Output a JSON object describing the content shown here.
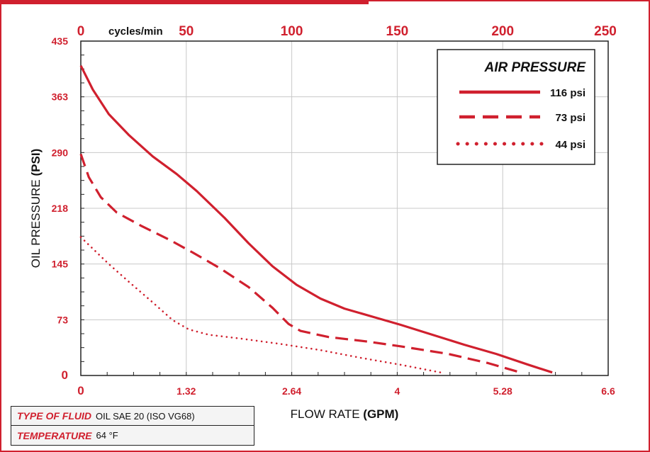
{
  "colors": {
    "accent": "#d0202e",
    "text": "#111111",
    "grid": "#c8c8c8",
    "frame": "#222222"
  },
  "chart_data": {
    "type": "line",
    "xlabel_bold_prefix": "FLOW RATE",
    "xlabel_unit": "(GPM)",
    "ylabel_prefix": "OIL PRESSURE",
    "ylabel_unit": "(PSI)",
    "xlim": [
      0,
      6.6
    ],
    "ylim": [
      0,
      435
    ],
    "x_ticks": [
      "0",
      "1.32",
      "2.64",
      "4",
      "5.28",
      "6.6"
    ],
    "x_tick_values": [
      0,
      1.32,
      2.64,
      3.96,
      5.28,
      6.6
    ],
    "y_ticks": [
      "0",
      "73",
      "145",
      "218",
      "290",
      "363",
      "435"
    ],
    "y_tick_values": [
      0,
      72.5,
      145,
      217.5,
      290,
      362.5,
      435
    ],
    "top_axis": {
      "unit_label": "cycles/min",
      "ticks": [
        "0",
        "50",
        "100",
        "150",
        "200",
        "250"
      ],
      "tick_values": [
        0,
        50,
        100,
        150,
        200,
        250
      ],
      "range": [
        0,
        250
      ]
    },
    "grid": true,
    "legend_position": "top-right",
    "legend_title": "AIR PRESSURE",
    "series": [
      {
        "name": "116 psi",
        "style": "solid",
        "x": [
          0,
          0.15,
          0.35,
          0.6,
          0.9,
          1.2,
          1.45,
          1.8,
          2.1,
          2.4,
          2.7,
          3.0,
          3.3,
          3.7,
          4.0,
          4.4,
          4.8,
          5.2,
          5.6,
          5.9
        ],
        "y": [
          403,
          372,
          340,
          313,
          285,
          262,
          240,
          205,
          172,
          142,
          118,
          100,
          87,
          75,
          66,
          53,
          40,
          28,
          14,
          4
        ]
      },
      {
        "name": "73 psi",
        "style": "dashed",
        "x": [
          0,
          0.1,
          0.25,
          0.45,
          0.75,
          1.1,
          1.4,
          1.75,
          2.1,
          2.4,
          2.6,
          2.75,
          3.1,
          3.6,
          4.0,
          4.6,
          5.1,
          5.5
        ],
        "y": [
          288,
          258,
          232,
          212,
          195,
          177,
          160,
          139,
          115,
          88,
          67,
          58,
          50,
          44,
          38,
          28,
          16,
          4
        ]
      },
      {
        "name": "44 psi",
        "style": "dotted",
        "x": [
          0,
          0.15,
          0.35,
          0.6,
          0.9,
          1.15,
          1.35,
          1.6,
          2.0,
          2.5,
          3.0,
          3.5,
          4.0,
          4.5
        ],
        "y": [
          180,
          165,
          145,
          122,
          95,
          72,
          60,
          53,
          48,
          41,
          33,
          23,
          14,
          4
        ]
      }
    ]
  },
  "fluid": {
    "type_label": "TYPE OF FLUID",
    "type_value": "OIL SAE 20 (ISO VG68)",
    "temp_label": "TEMPERATURE",
    "temp_value": "64 °F"
  }
}
